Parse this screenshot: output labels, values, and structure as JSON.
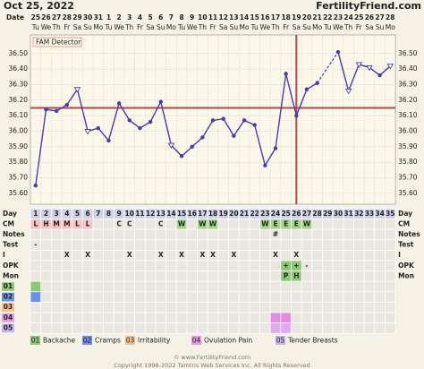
{
  "header": {
    "date": "Oct 25, 2022",
    "site": "FertilityFriend.com"
  },
  "chart_data": {
    "type": "line",
    "x_label": "Date",
    "annotation": "FAM Detector",
    "dates": [
      "25",
      "26",
      "27",
      "28",
      "29",
      "30",
      "31",
      "1",
      "2",
      "3",
      "4",
      "5",
      "6",
      "7",
      "8",
      "9",
      "10",
      "11",
      "12",
      "13",
      "14",
      "15",
      "16",
      "17",
      "18",
      "19",
      "20",
      "21",
      "22",
      "23",
      "24",
      "25",
      "26",
      "27",
      "28"
    ],
    "weekdays": [
      "Tu",
      "We",
      "Th",
      "Fr",
      "Sa",
      "Su",
      "Mo",
      "Tu",
      "We",
      "Th",
      "Fr",
      "Sa",
      "Su",
      "Mo",
      "Tu",
      "We",
      "Th",
      "Fr",
      "Sa",
      "Su",
      "Mo",
      "Tu",
      "We",
      "Th",
      "Fr",
      "Sa",
      "Su",
      "Mo",
      "Tu",
      "We",
      "Th",
      "Fr",
      "Sa",
      "Su",
      "Mo"
    ],
    "series": [
      {
        "color": "#4b3aa8",
        "values": [
          35.65,
          36.14,
          36.13,
          36.17,
          36.27,
          36.0,
          36.02,
          35.94,
          36.18,
          36.07,
          36.02,
          36.06,
          36.19,
          35.91,
          35.84,
          35.9,
          35.96,
          36.07,
          36.08,
          35.97,
          36.07,
          36.04,
          35.78,
          35.89,
          36.37,
          36.1,
          36.27,
          36.31,
          null,
          36.51,
          36.26,
          36.43,
          36.41,
          36.36,
          36.42
        ],
        "markers": [
          "dot",
          "dot",
          "dot",
          "dot",
          "open",
          "open",
          "dot",
          "dot",
          "dot",
          "dot",
          "dot",
          "dot",
          "dot",
          "open",
          "dot",
          "dot",
          "dot",
          "dot",
          "dot",
          "dot",
          "dot",
          "dot",
          "dot",
          "dot",
          "dot",
          "dot",
          "dot",
          "dot",
          "dot",
          "dot",
          "open",
          "open",
          "open",
          "dot",
          "open"
        ]
      }
    ],
    "ylim": [
      35.53,
      36.62
    ],
    "yticks": [
      {
        "value": 35.6,
        "label": "35.60"
      },
      {
        "value": 35.7,
        "label": "35.70"
      },
      {
        "value": 35.8,
        "label": "35.80"
      },
      {
        "value": 35.9,
        "label": "35.90"
      },
      {
        "value": 36.0,
        "label": "36.00"
      },
      {
        "value": 36.1,
        "label": "36.10"
      },
      {
        "value": 36.2,
        "label": "36.20"
      },
      {
        "value": 36.3,
        "label": "36.30"
      },
      {
        "value": 36.4,
        "label": "36.40"
      },
      {
        "value": 36.5,
        "label": "36.50"
      }
    ],
    "grid": true,
    "coverline": 36.15,
    "coverline_color": "#b24a4a",
    "ovulation_day": 26
  },
  "table": {
    "day_label": "Day",
    "days": [
      1,
      2,
      3,
      4,
      5,
      6,
      7,
      8,
      9,
      10,
      11,
      12,
      13,
      14,
      15,
      16,
      17,
      18,
      19,
      20,
      21,
      22,
      23,
      24,
      25,
      26,
      27,
      28,
      29,
      30,
      31,
      32,
      33,
      34,
      35
    ],
    "rows": [
      {
        "label": "CM",
        "entries": [
          {
            "day": 1,
            "text": "L",
            "fill": "#f6c4c4",
            "color": "#d0201a"
          },
          {
            "day": 2,
            "text": "H",
            "fill": "#f6c4c4",
            "color": "#d0201a"
          },
          {
            "day": 3,
            "text": "M",
            "fill": "#f6c4c4",
            "color": "#d0201a"
          },
          {
            "day": 4,
            "text": "M",
            "fill": "#f6c4c4",
            "color": "#d0201a"
          },
          {
            "day": 5,
            "text": "L",
            "fill": "#f6c4c4",
            "color": "#d0201a"
          },
          {
            "day": 6,
            "text": "L",
            "fill": "#f6c4c4",
            "color": "#d0201a"
          },
          {
            "day": 9,
            "text": "C"
          },
          {
            "day": 10,
            "text": "C"
          },
          {
            "day": 13,
            "text": "C"
          },
          {
            "day": 15,
            "text": "W",
            "fill": "#a6d58e",
            "color": "#2c5a1c"
          },
          {
            "day": 17,
            "text": "W",
            "fill": "#a6d58e",
            "color": "#2c5a1c"
          },
          {
            "day": 18,
            "text": "W",
            "fill": "#a6d58e",
            "color": "#2c5a1c"
          },
          {
            "day": 23,
            "text": "W",
            "fill": "#a6d58e",
            "color": "#2c5a1c"
          },
          {
            "day": 24,
            "text": "E",
            "fill": "#a6d58e",
            "color": "#2c5a1c"
          },
          {
            "day": 25,
            "text": "E",
            "fill": "#a6d58e",
            "color": "#2c5a1c"
          },
          {
            "day": 26,
            "text": "E",
            "fill": "#a6d58e",
            "color": "#2c5a1c"
          },
          {
            "day": 27,
            "text": "W",
            "fill": "#a6d58e",
            "color": "#2c5a1c"
          }
        ]
      },
      {
        "label": "Notes",
        "entries": [
          {
            "day": 24,
            "text": "#"
          }
        ]
      },
      {
        "label": "Test",
        "entries": [
          {
            "day": 1,
            "text": "-"
          }
        ]
      },
      {
        "label": "I",
        "entries": [
          {
            "day": 4,
            "text": "X"
          },
          {
            "day": 6,
            "text": "X"
          },
          {
            "day": 10,
            "text": "X"
          },
          {
            "day": 13,
            "text": "X"
          },
          {
            "day": 15,
            "text": "X"
          },
          {
            "day": 17,
            "text": "X"
          },
          {
            "day": 18,
            "text": "X"
          },
          {
            "day": 20,
            "text": "X"
          },
          {
            "day": 24,
            "text": "X"
          },
          {
            "day": 26,
            "text": "X"
          }
        ]
      },
      {
        "label": "OPK",
        "entries": [
          {
            "day": 25,
            "text": "+",
            "fill": "#8cc878",
            "color": "#ffffff"
          },
          {
            "day": 26,
            "text": "+",
            "fill": "#8cc878",
            "color": "#ffffff"
          },
          {
            "day": 27,
            "text": "-"
          }
        ]
      },
      {
        "label": "Mon",
        "entries": [
          {
            "day": 25,
            "text": "P",
            "fill": "#8cc878",
            "color": "#1c4a10"
          },
          {
            "day": 26,
            "text": "H",
            "fill": "#8cc878",
            "color": "#1c4a10"
          }
        ]
      },
      {
        "label": "01",
        "label_fill": "#8cc878",
        "entries": [
          {
            "day": 1,
            "fill": "#8cc878"
          }
        ]
      },
      {
        "label": "02",
        "label_fill": "#6b8fe6",
        "entries": [
          {
            "day": 1,
            "fill": "#6b8fe6"
          }
        ]
      },
      {
        "label": "03",
        "label_fill": "#f3c18c",
        "entries": []
      },
      {
        "label": "04",
        "label_fill": "#e69ae6",
        "entries": [
          {
            "day": 24,
            "fill": "#e68ae6"
          },
          {
            "day": 25,
            "fill": "#e68ae6"
          }
        ]
      },
      {
        "label": "05",
        "label_fill": "#c3b6ef",
        "entries": [
          {
            "day": 24,
            "fill": "#e3a8ef"
          },
          {
            "day": 25,
            "fill": "#e3a8ef"
          }
        ]
      }
    ]
  },
  "legend": [
    {
      "code": "01",
      "text": "Backache",
      "color": "#8cc878"
    },
    {
      "code": "02",
      "text": "Cramps",
      "color": "#6b8fe6"
    },
    {
      "code": "03",
      "text": "Irritability",
      "color": "#f3c18c"
    },
    {
      "code": "04",
      "text": "Ovulation Pain",
      "color": "#e69ae6"
    },
    {
      "code": "05",
      "text": "Tender Breasts",
      "color": "#c3b6ef"
    }
  ],
  "footer": {
    "line1": "© www.FertilityFriend.com",
    "line2": "Copyright 1998-2022 Tamtris Web Services Inc. All Rights Reserved"
  }
}
